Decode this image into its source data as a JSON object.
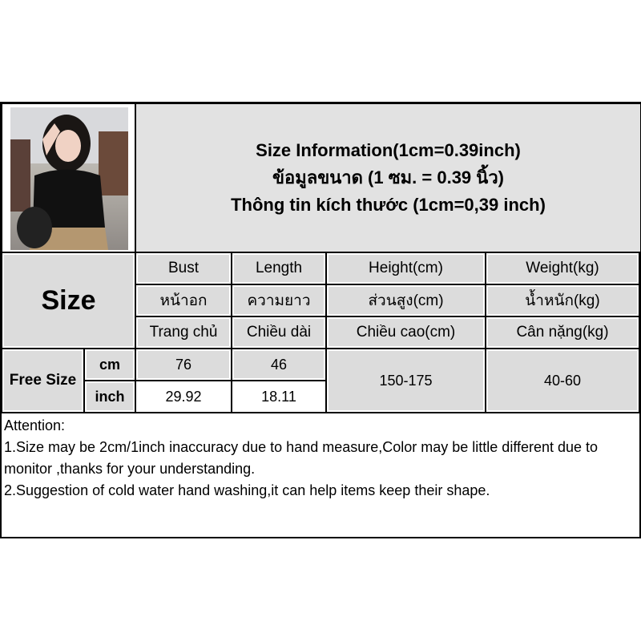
{
  "title": {
    "line1": "Size Information(1cm=0.39inch)",
    "line2": "ข้อมูลขนาด (1 ซม. = 0.39 นิ้ว)",
    "line3": "Thông tin kích thước (1cm=0,39 inch)"
  },
  "table": {
    "size_label": "Size",
    "columns": [
      {
        "en": "Bust",
        "th": "หน้าอก",
        "vi": "Trang chủ"
      },
      {
        "en": "Length",
        "th": "ความยาว",
        "vi": "Chiều dài"
      },
      {
        "en": "Height(cm)",
        "th": "ส่วนสูง(cm)",
        "vi": "Chiều cao(cm)"
      },
      {
        "en": "Weight(kg)",
        "th": "น้ำหนัก(kg)",
        "vi": "Cân nặng(kg)"
      }
    ],
    "row": {
      "size": "Free Size",
      "unit_cm": "cm",
      "unit_inch": "inch",
      "bust_cm": "76",
      "length_cm": "46",
      "bust_inch": "29.92",
      "length_inch": "18.11",
      "height": "150-175",
      "weight": "40-60"
    }
  },
  "attention": {
    "heading": "Attention:",
    "note1": "1.Size may be 2cm/1inch inaccuracy due to hand measure,Color may be little different due to monitor ,thanks for your understanding.",
    "note2": "2.Suggestion of cold water hand washing,it can help items keep their shape."
  }
}
